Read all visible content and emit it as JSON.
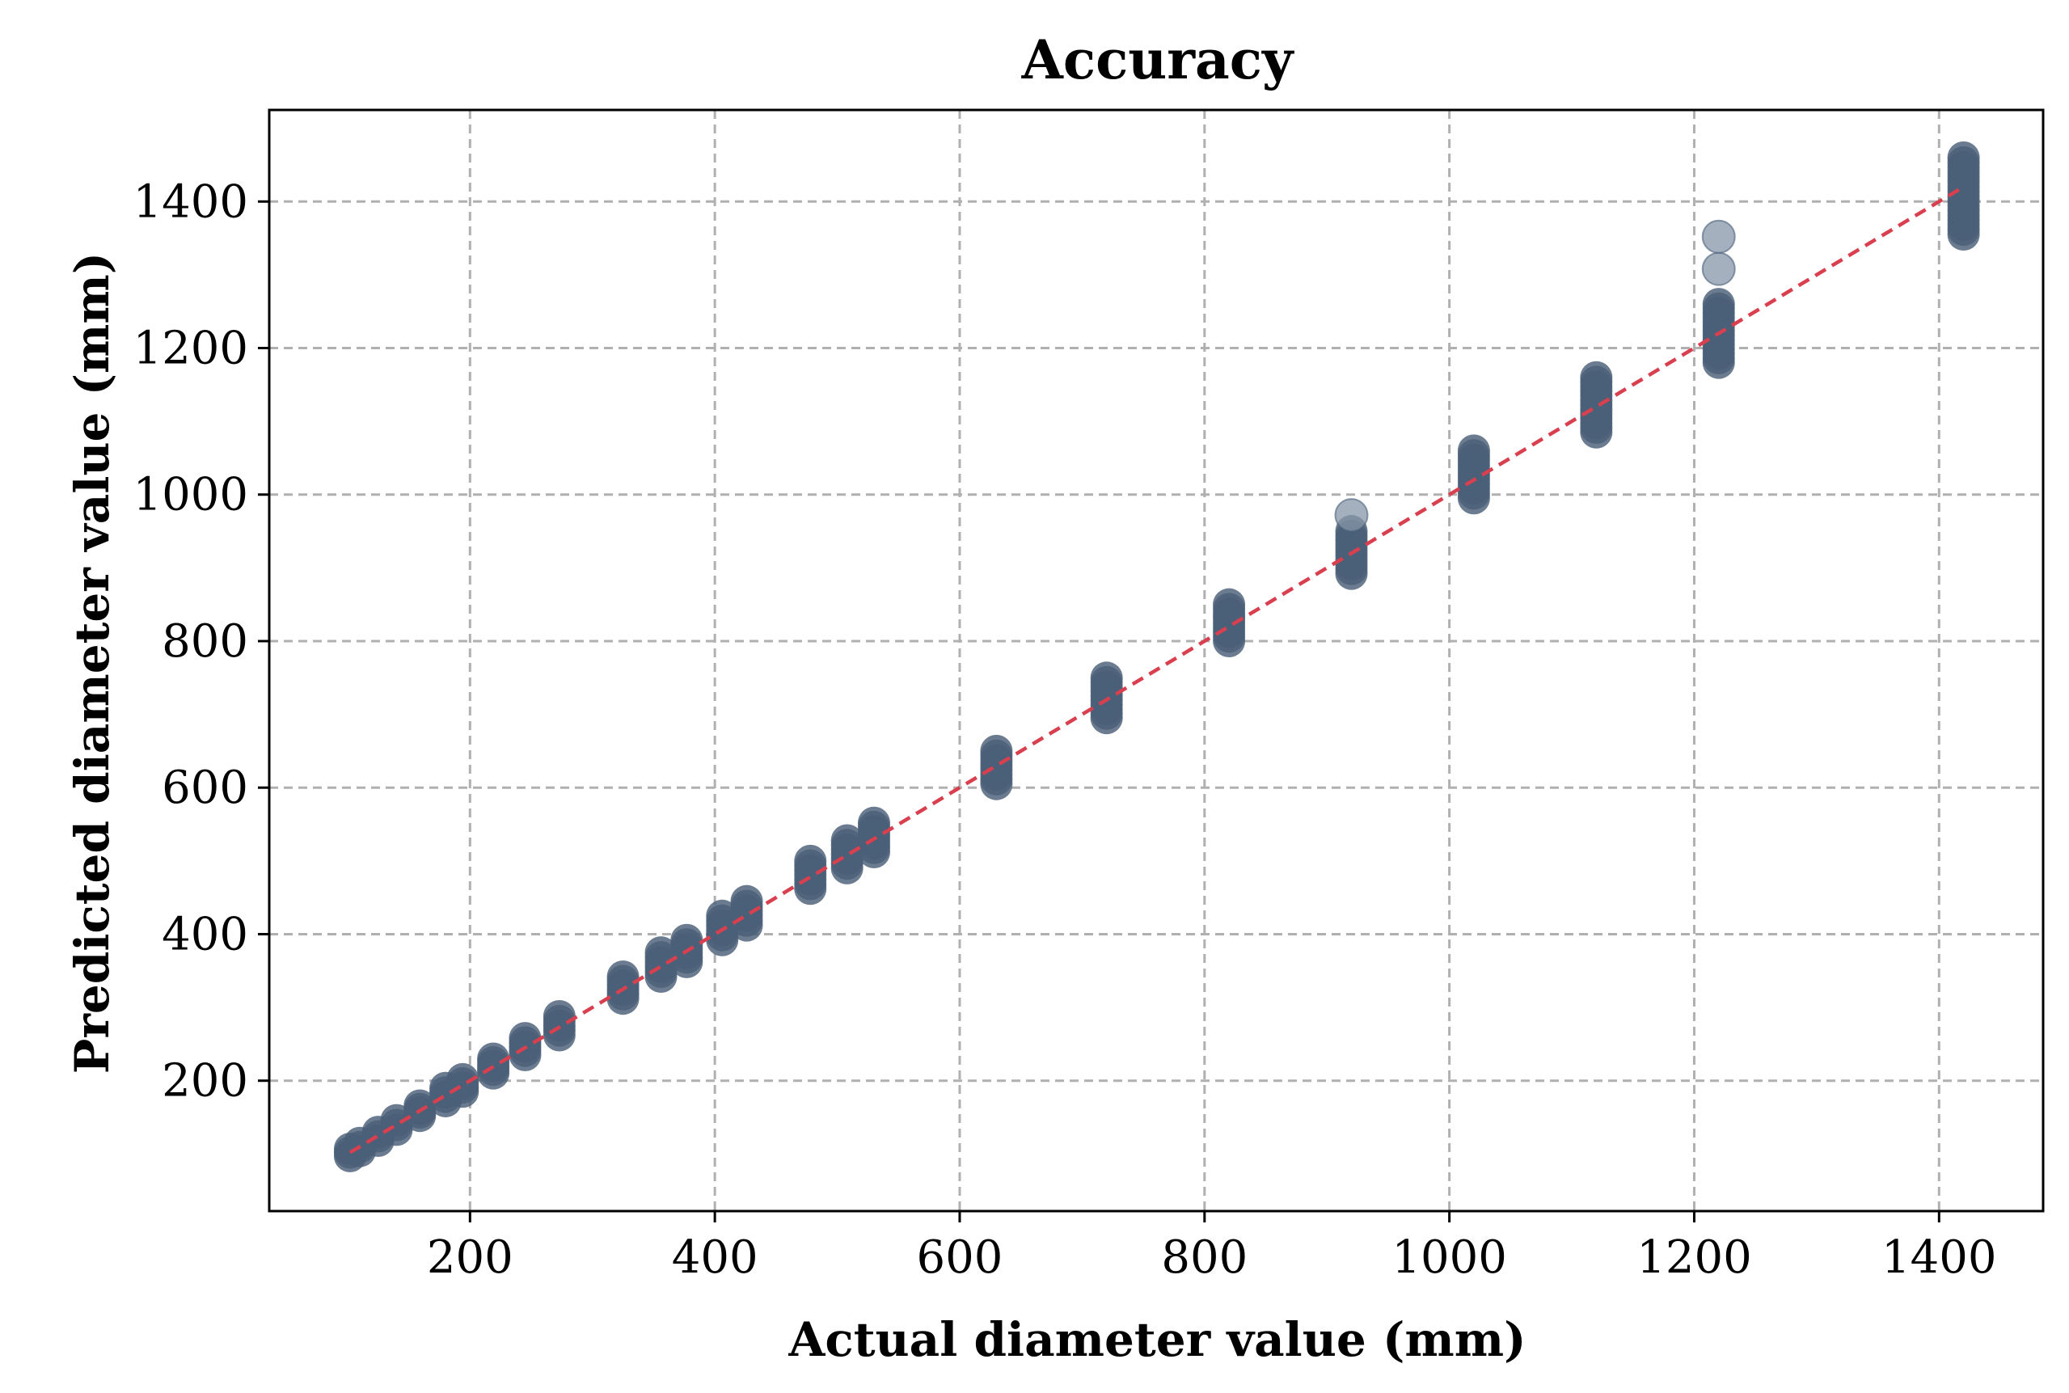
{
  "colors": {
    "point_fill": "#4a5f78",
    "point_light": "#8796a8",
    "reference_line": "#d9404f",
    "grid": "#b0b0b0",
    "axis": "#000000",
    "background": "#ffffff"
  },
  "chart_data": {
    "type": "scatter",
    "title": "Accuracy",
    "xlabel": "Actual diameter value (mm)",
    "ylabel": "Predicted diameter value (mm)",
    "xlim": [
      36,
      1485
    ],
    "ylim": [
      22,
      1525
    ],
    "xticks": [
      200,
      400,
      600,
      800,
      1000,
      1200,
      1400
    ],
    "yticks": [
      200,
      400,
      600,
      800,
      1000,
      1200,
      1400
    ],
    "grid": true,
    "grid_style": "dashed",
    "reference_line": {
      "from": [
        102,
        102
      ],
      "to": [
        1420,
        1420
      ],
      "style": "dashed"
    },
    "clusters": [
      {
        "x": 102,
        "y_min": 97,
        "y_max": 107
      },
      {
        "x": 110,
        "y_min": 104,
        "y_max": 115
      },
      {
        "x": 125,
        "y_min": 118,
        "y_max": 130
      },
      {
        "x": 140,
        "y_min": 133,
        "y_max": 146
      },
      {
        "x": 159,
        "y_min": 152,
        "y_max": 166
      },
      {
        "x": 180,
        "y_min": 172,
        "y_max": 190
      },
      {
        "x": 194,
        "y_min": 185,
        "y_max": 202
      },
      {
        "x": 219,
        "y_min": 210,
        "y_max": 230
      },
      {
        "x": 245,
        "y_min": 235,
        "y_max": 258
      },
      {
        "x": 273,
        "y_min": 262,
        "y_max": 288
      },
      {
        "x": 325,
        "y_min": 312,
        "y_max": 342
      },
      {
        "x": 356,
        "y_min": 342,
        "y_max": 375
      },
      {
        "x": 377,
        "y_min": 362,
        "y_max": 392
      },
      {
        "x": 406,
        "y_min": 392,
        "y_max": 425
      },
      {
        "x": 426,
        "y_min": 412,
        "y_max": 445
      },
      {
        "x": 478,
        "y_min": 462,
        "y_max": 500
      },
      {
        "x": 508,
        "y_min": 490,
        "y_max": 528
      },
      {
        "x": 530,
        "y_min": 512,
        "y_max": 552
      },
      {
        "x": 630,
        "y_min": 605,
        "y_max": 650
      },
      {
        "x": 720,
        "y_min": 695,
        "y_max": 750
      },
      {
        "x": 820,
        "y_min": 800,
        "y_max": 850
      },
      {
        "x": 920,
        "y_min": 892,
        "y_max": 950
      },
      {
        "x": 1020,
        "y_min": 995,
        "y_max": 1060
      },
      {
        "x": 1120,
        "y_min": 1085,
        "y_max": 1160
      },
      {
        "x": 1220,
        "y_min": 1180,
        "y_max": 1260
      },
      {
        "x": 1420,
        "y_min": 1355,
        "y_max": 1460
      }
    ],
    "outliers": [
      {
        "x": 920,
        "y": 972
      },
      {
        "x": 1220,
        "y": 1308
      },
      {
        "x": 1220,
        "y": 1352
      }
    ]
  }
}
